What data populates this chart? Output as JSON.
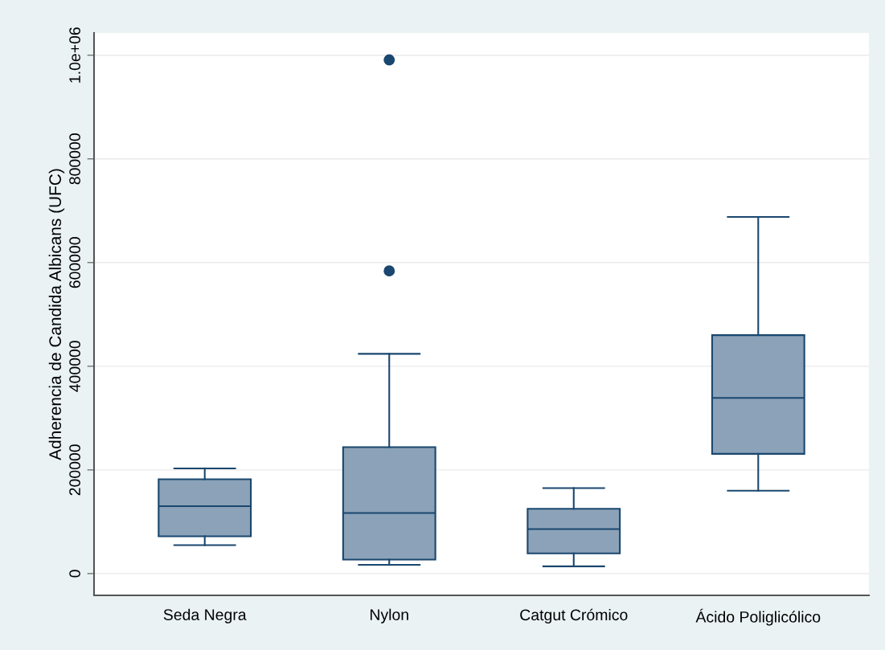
{
  "chart_data": {
    "type": "box",
    "ylabel": "Adherencia de Candida Albicans (UFC)",
    "categories": [
      "Seda Negra",
      "Nylon",
      "Catgut Crómico",
      "Ácido Poliglicólico"
    ],
    "color": "#8ba2b8",
    "boxes": [
      {
        "low": 55000,
        "q1": 72000,
        "median": 130000,
        "q3": 182000,
        "high": 203000
      },
      {
        "low": 17000,
        "q1": 27000,
        "median": 117000,
        "q3": 244000,
        "high": 424000,
        "outliers": [
          584000,
          991000
        ]
      },
      {
        "low": 14000,
        "q1": 39000,
        "median": 86000,
        "q3": 125000,
        "high": 165000
      },
      {
        "low": 160000,
        "q1": 231000,
        "median": 339000,
        "q3": 460000,
        "high": 688000
      }
    ],
    "ylim": [
      -42000,
      1043000
    ],
    "yticks": [
      0,
      200000,
      400000,
      600000,
      800000,
      {
        "value": 1000000,
        "label": "1.0e+06"
      }
    ],
    "grid": "y"
  }
}
